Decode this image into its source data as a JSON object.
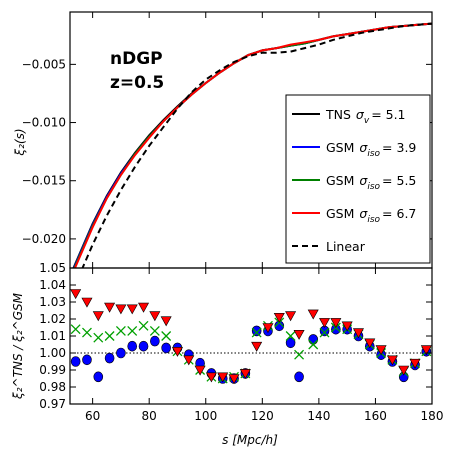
{
  "chart_data": [
    {
      "type": "line",
      "annotation": [
        "nDGP",
        "z=0.5"
      ],
      "ylabel": "ξ₂(s)",
      "xlim": [
        52,
        180
      ],
      "ylim": [
        -0.0225,
        -0.0005
      ],
      "yticks": [
        -0.02,
        -0.015,
        -0.01,
        -0.005
      ],
      "ytick_labels": [
        "−0.020",
        "−0.015",
        "−0.010",
        "−0.005"
      ],
      "legend_position": "lower right",
      "series": [
        {
          "name": "TNS σ_v = 5.1",
          "legend_plain": "TNS",
          "legend_math": "σ",
          "legend_sub": "v",
          "legend_value": "= 5.1",
          "color": "#000000",
          "dash": "solid",
          "x": [
            52,
            55,
            60,
            65,
            70,
            75,
            80,
            85,
            90,
            95,
            100,
            105,
            110,
            115,
            120,
            125,
            130,
            135,
            140,
            145,
            150,
            155,
            160,
            165,
            170,
            175,
            180
          ],
          "y": [
            -0.0232,
            -0.0215,
            -0.0187,
            -0.0163,
            -0.0143,
            -0.0126,
            -0.0111,
            -0.0098,
            -0.0086,
            -0.0075,
            -0.0066,
            -0.0057,
            -0.0049,
            -0.0042,
            -0.0038,
            -0.0036,
            -0.0034,
            -0.0032,
            -0.0029,
            -0.0026,
            -0.0024,
            -0.0022,
            -0.002,
            -0.0018,
            -0.0017,
            -0.0016,
            -0.0015
          ]
        },
        {
          "name": "GSM σ_iso = 3.9",
          "legend_plain": "GSM",
          "legend_math": "σ",
          "legend_sub": "iso",
          "legend_value": "= 3.9",
          "color": "#0000ff",
          "dash": "solid",
          "x": [
            52,
            55,
            60,
            65,
            70,
            75,
            80,
            85,
            90,
            95,
            100,
            105,
            110,
            115,
            120,
            125,
            130,
            135,
            140,
            145,
            150,
            155,
            160,
            165,
            170,
            175,
            180
          ],
          "y": [
            -0.0233,
            -0.0216,
            -0.0188,
            -0.0164,
            -0.0144,
            -0.0127,
            -0.0112,
            -0.0099,
            -0.0087,
            -0.0076,
            -0.0066,
            -0.0057,
            -0.0049,
            -0.0042,
            -0.0038,
            -0.0036,
            -0.0034,
            -0.0032,
            -0.0029,
            -0.0026,
            -0.0024,
            -0.0022,
            -0.002,
            -0.0018,
            -0.0017,
            -0.0016,
            -0.0015
          ]
        },
        {
          "name": "GSM σ_iso = 5.5",
          "legend_plain": "GSM",
          "legend_math": "σ",
          "legend_sub": "iso",
          "legend_value": "= 5.5",
          "color": "#008000",
          "dash": "solid",
          "x": [
            52,
            55,
            60,
            65,
            70,
            75,
            80,
            85,
            90,
            95,
            100,
            105,
            110,
            115,
            120,
            125,
            130,
            135,
            140,
            145,
            150,
            155,
            160,
            165,
            170,
            175,
            180
          ],
          "y": [
            -0.0234,
            -0.0217,
            -0.0189,
            -0.0165,
            -0.0145,
            -0.0127,
            -0.0112,
            -0.0099,
            -0.0087,
            -0.0076,
            -0.0066,
            -0.0057,
            -0.0049,
            -0.0042,
            -0.0038,
            -0.0036,
            -0.0034,
            -0.0032,
            -0.0029,
            -0.0026,
            -0.0024,
            -0.0022,
            -0.002,
            -0.0018,
            -0.0017,
            -0.0016,
            -0.0015
          ]
        },
        {
          "name": "GSM σ_iso = 6.7",
          "legend_plain": "GSM",
          "legend_math": "σ",
          "legend_sub": "iso",
          "legend_value": "= 6.7",
          "color": "#ff0000",
          "dash": "solid",
          "x": [
            52,
            55,
            60,
            65,
            70,
            75,
            80,
            85,
            90,
            95,
            100,
            105,
            110,
            115,
            120,
            125,
            130,
            135,
            140,
            145,
            150,
            155,
            160,
            165,
            170,
            175,
            180
          ],
          "y": [
            -0.0235,
            -0.0218,
            -0.019,
            -0.0165,
            -0.0145,
            -0.0128,
            -0.0113,
            -0.0099,
            -0.0087,
            -0.0076,
            -0.0066,
            -0.0057,
            -0.0049,
            -0.0042,
            -0.0038,
            -0.0036,
            -0.0033,
            -0.0031,
            -0.0029,
            -0.0026,
            -0.0024,
            -0.0022,
            -0.002,
            -0.0018,
            -0.0017,
            -0.0016,
            -0.0015
          ]
        },
        {
          "name": "Linear",
          "legend_plain": "Linear",
          "legend_math": "",
          "legend_sub": "",
          "legend_value": "",
          "color": "#000000",
          "dash": "dashed",
          "x": [
            52,
            55,
            60,
            65,
            70,
            75,
            80,
            85,
            90,
            95,
            100,
            105,
            110,
            115,
            120,
            125,
            130,
            135,
            140,
            145,
            150,
            155,
            160,
            165,
            170,
            175,
            180
          ],
          "y": [
            -0.025,
            -0.0233,
            -0.0205,
            -0.018,
            -0.0158,
            -0.0138,
            -0.012,
            -0.0104,
            -0.0088,
            -0.0074,
            -0.0063,
            -0.0055,
            -0.0048,
            -0.0043,
            -0.004,
            -0.004,
            -0.0039,
            -0.0036,
            -0.0033,
            -0.0029,
            -0.0026,
            -0.0023,
            -0.0021,
            -0.0019,
            -0.0017,
            -0.0016,
            -0.0015
          ]
        }
      ]
    },
    {
      "type": "scatter",
      "ylabel": "ξ₂^TNS / ξ₂^GSM",
      "xlabel": "s [Mpc/h]",
      "xlim": [
        52,
        180
      ],
      "ylim": [
        0.97,
        1.05
      ],
      "xticks": [
        60,
        80,
        100,
        120,
        140,
        160,
        180
      ],
      "yticks": [
        0.97,
        0.98,
        0.99,
        1.0,
        1.01,
        1.02,
        1.03,
        1.04,
        1.05
      ],
      "ytick_labels": [
        "0.97",
        "0.98",
        "0.99",
        "1.00",
        "1.01",
        "1.02",
        "1.03",
        "1.04",
        "1.05"
      ],
      "reference_line": 1.0,
      "series": [
        {
          "marker": "circle",
          "color": "#0000ff",
          "x": [
            54,
            58,
            62,
            66,
            70,
            74,
            78,
            82,
            86,
            90,
            94,
            98,
            102,
            106,
            110,
            114,
            118,
            122,
            126,
            130,
            133,
            138,
            142,
            146,
            150,
            154,
            158,
            162,
            166,
            170,
            174,
            178
          ],
          "y": [
            0.995,
            0.996,
            0.986,
            0.997,
            1.0,
            1.004,
            1.004,
            1.007,
            1.003,
            1.003,
            0.999,
            0.994,
            0.988,
            0.985,
            0.985,
            0.988,
            1.013,
            1.013,
            1.016,
            1.006,
            0.986,
            1.008,
            1.013,
            1.014,
            1.014,
            1.01,
            1.004,
            0.999,
            0.995,
            0.986,
            0.993,
            1.001
          ]
        },
        {
          "marker": "x",
          "color": "#00a000",
          "x": [
            54,
            58,
            62,
            66,
            70,
            74,
            78,
            82,
            86,
            90,
            94,
            98,
            102,
            106,
            110,
            114,
            118,
            122,
            126,
            130,
            133,
            138,
            142,
            146,
            150,
            154,
            158,
            162,
            166,
            170,
            174,
            178
          ],
          "y": [
            1.014,
            1.012,
            1.009,
            1.01,
            1.013,
            1.013,
            1.016,
            1.013,
            1.01,
            1.001,
            0.996,
            0.99,
            0.986,
            0.985,
            0.986,
            0.988,
            1.012,
            1.016,
            1.018,
            1.01,
            0.999,
            1.005,
            1.012,
            1.015,
            1.014,
            1.011,
            1.005,
            1.0,
            0.996,
            0.989,
            0.994,
            1.001
          ]
        },
        {
          "marker": "triangle-down",
          "color": "#ff0000",
          "x": [
            54,
            58,
            62,
            66,
            70,
            74,
            78,
            82,
            86,
            90,
            94,
            98,
            102,
            106,
            110,
            114,
            118,
            122,
            126,
            130,
            133,
            138,
            142,
            146,
            150,
            154,
            158,
            162,
            166,
            170,
            174,
            178
          ],
          "y": [
            1.035,
            1.03,
            1.022,
            1.027,
            1.026,
            1.026,
            1.027,
            1.022,
            1.019,
            1.001,
            0.996,
            0.99,
            0.986,
            0.986,
            0.985,
            0.988,
            1.004,
            1.015,
            1.021,
            1.022,
            1.011,
            1.023,
            1.018,
            1.018,
            1.016,
            1.012,
            1.006,
            1.002,
            0.996,
            0.99,
            0.994,
            1.002
          ]
        }
      ]
    }
  ]
}
